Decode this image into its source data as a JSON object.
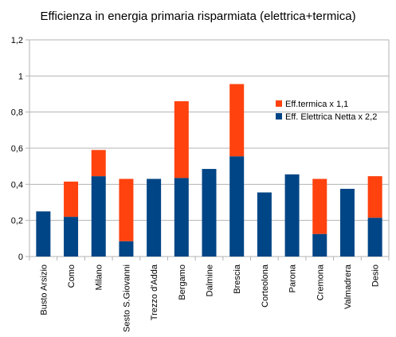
{
  "chart_data": {
    "type": "bar",
    "stacked": true,
    "title": "Efficienza in energia primaria risparmiata (elettrica+termica)",
    "xlabel": "",
    "ylabel": "",
    "ylim": [
      0,
      1.2
    ],
    "yticks": [
      "0",
      "0,2",
      "0,4",
      "0,6",
      "0,8",
      "1",
      "1,2"
    ],
    "grid": true,
    "legend_position": "right",
    "categories": [
      "Busto Arsizio",
      "Como",
      "Milano",
      "Sesto S.Giovanni",
      "Trezzo d'Adda",
      "Bergamo",
      "Dalmine",
      "Brescia",
      "Corteolona",
      "Parona",
      "Cremona",
      "Valmadrera",
      "Desio"
    ],
    "series": [
      {
        "name": "Eff. Elettrica Netta x 2,2",
        "color": "#004586",
        "values": [
          0.25,
          0.22,
          0.445,
          0.085,
          0.43,
          0.435,
          0.485,
          0.555,
          0.355,
          0.455,
          0.125,
          0.375,
          0.215
        ]
      },
      {
        "name": "Eff.termica x 1,1",
        "color": "#ff420e",
        "values": [
          0,
          0.195,
          0.145,
          0.345,
          0,
          0.425,
          0,
          0.4,
          0,
          0,
          0.305,
          0,
          0.23
        ]
      }
    ],
    "legend": [
      "Eff.termica x 1,1",
      "Eff. Elettrica Netta x 2,2"
    ]
  }
}
